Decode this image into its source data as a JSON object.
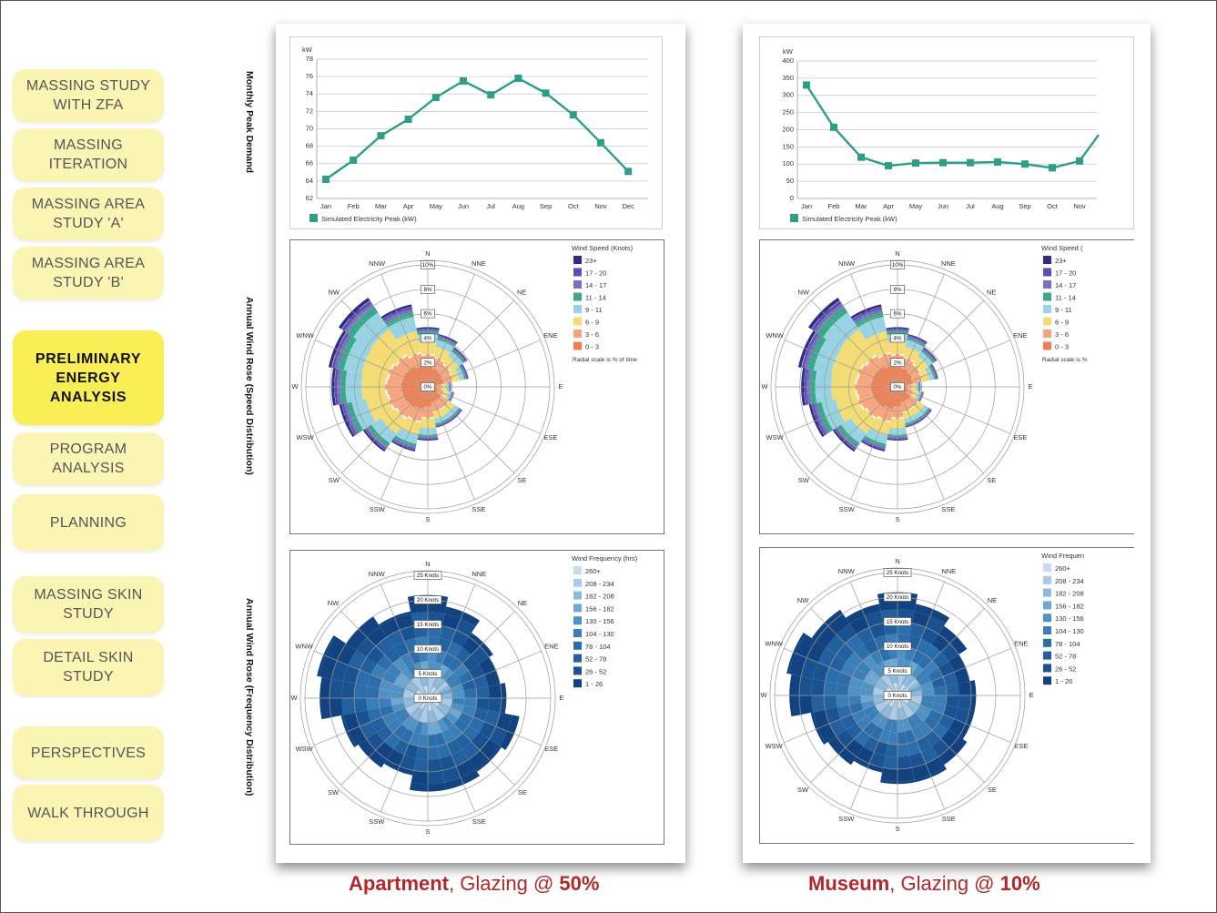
{
  "nav": [
    {
      "label": "MASSING STUDY\nWITH ZFA",
      "active": false
    },
    {
      "label": "MASSING\nITERATION",
      "active": false
    },
    {
      "label": "MASSING AREA\nSTUDY 'A'",
      "active": false
    },
    {
      "label": "MASSING AREA\nSTUDY 'B'",
      "active": false
    },
    {
      "label": "PRELIMINARY\nENERGY\nANALYSIS",
      "active": true
    },
    {
      "label": "PROGRAM\nANALYSIS",
      "active": false
    },
    {
      "label": "PLANNING",
      "active": false
    },
    {
      "label": "MASSING SKIN\nSTUDY",
      "active": false
    },
    {
      "label": "DETAIL SKIN\nSTUDY",
      "active": false
    },
    {
      "label": "PERSPECTIVES",
      "active": false
    },
    {
      "label": "WALK THROUGH",
      "active": false
    }
  ],
  "row_labels": {
    "demand": "Monthly Peak Demand",
    "speed": "Annual Wind Rose (Speed Distribution)",
    "frequency": "Annual Wind Rose (Frequency Distribution)"
  },
  "captions": {
    "apartment": {
      "name": "Apartment",
      "middle": ", Glazing @ ",
      "value": "50%"
    },
    "museum": {
      "name": "Museum",
      "middle": ", Glazing @ ",
      "value": "10%"
    }
  },
  "wind_directions": [
    "N",
    "NNE",
    "NE",
    "ENE",
    "E",
    "ESE",
    "SE",
    "SSE",
    "S",
    "SSW",
    "SW",
    "WSW",
    "W",
    "WNW",
    "NW",
    "NNW"
  ],
  "speed_legend": {
    "title": "Wind Speed (Knots)",
    "title_truncated": "Wind Speed (",
    "items": [
      "23+",
      "17 - 20",
      "14 - 17",
      "11 - 14",
      "9 - 11",
      "6 - 9",
      "3 - 6",
      "0 - 3"
    ],
    "colors": [
      "#2e2c85",
      "#5a4fae",
      "#7b6fc4",
      "#3aa889",
      "#98d3e3",
      "#f4dc74",
      "#f7a57c",
      "#f07e4f"
    ],
    "note": "Radial scale is  % of time",
    "note_truncated": "Radial scale is  %",
    "ring_labels": [
      "0%",
      "2%",
      "4%",
      "6%",
      "8%",
      "10%"
    ]
  },
  "freq_legend": {
    "title": "Wind Frequency (hrs)",
    "title_truncated": "Wind Frequen",
    "items": [
      "260+",
      "208 - 234",
      "182 - 208",
      "156 - 182",
      "130 - 156",
      "104 - 130",
      "78 - 104",
      "52 - 78",
      "26 - 52",
      "1 - 26"
    ],
    "colors": [
      "#c6dbef",
      "#a9cbe6",
      "#8cbadd",
      "#6da7d2",
      "#4f92c6",
      "#3a7fba",
      "#2c6dac",
      "#22609f",
      "#1a5291",
      "#124380"
    ],
    "ring_labels": [
      "0 Knots",
      "5 Knots",
      "10 Knots",
      "15 Knots",
      "20 Knots",
      "25 Knots"
    ]
  },
  "chart_data": [
    {
      "type": "line",
      "id": "apartment-demand",
      "title": "",
      "ylabel": "kW",
      "categories": [
        "Jan",
        "Feb",
        "Mar",
        "Apr",
        "May",
        "Jun",
        "Jul",
        "Aug",
        "Sep",
        "Oct",
        "Nov",
        "Dec"
      ],
      "series": [
        {
          "name": "Simulated Electricity Peak (kW)",
          "values": [
            64.2,
            66.4,
            69.2,
            71.1,
            73.6,
            75.5,
            73.9,
            75.8,
            74.1,
            71.6,
            68.4,
            65.1
          ]
        }
      ],
      "yticks": [
        62,
        64,
        66,
        68,
        70,
        72,
        74,
        76,
        78
      ],
      "ylim": [
        62,
        78
      ],
      "color": "#2e9e86"
    },
    {
      "type": "line",
      "id": "museum-demand",
      "title": "",
      "ylabel": "kW",
      "categories": [
        "Jan",
        "Feb",
        "Mar",
        "Apr",
        "May",
        "Jun",
        "Jul",
        "Aug",
        "Sep",
        "Oct",
        "Nov"
      ],
      "series": [
        {
          "name": "Simulated Electricity Peak (kW)",
          "values": [
            330,
            207,
            120,
            95,
            103,
            104,
            104,
            106,
            100,
            89,
            109
          ]
        }
      ],
      "tail_value": 185,
      "yticks": [
        0,
        50,
        100,
        150,
        200,
        250,
        300,
        350,
        400
      ],
      "ylim": [
        0,
        400
      ],
      "color": "#2e9e86"
    },
    {
      "type": "wind_rose_speed",
      "id": "apartment-speed",
      "directions": [
        "N",
        "NNE",
        "NE",
        "ENE",
        "E",
        "ESE",
        "SE",
        "SSE",
        "S",
        "SSW",
        "SW",
        "WSW",
        "W",
        "WNW",
        "NW",
        "NNW"
      ],
      "range_percent": [
        0,
        10
      ],
      "totals_percent": [
        4.9,
        4.4,
        3.9,
        3.4,
        1.9,
        2.2,
        3.4,
        3.4,
        4.4,
        5.4,
        6.4,
        7.4,
        7.9,
        8.3,
        8.8,
        6.9
      ],
      "inner_percent": [
        2.7,
        2.5,
        2.3,
        2.1,
        1.2,
        1.4,
        2.1,
        2.1,
        2.6,
        3.0,
        3.2,
        3.4,
        3.5,
        3.4,
        3.2,
        2.9
      ]
    },
    {
      "type": "wind_rose_speed",
      "id": "museum-speed",
      "directions": [
        "N",
        "NNE",
        "NE",
        "ENE",
        "E",
        "ESE",
        "SE",
        "SSE",
        "S",
        "SSW",
        "SW",
        "WSW",
        "W",
        "WNW",
        "NW",
        "NNW"
      ],
      "range_percent": [
        0,
        10
      ],
      "totals_percent": [
        4.9,
        4.4,
        3.9,
        3.4,
        1.9,
        2.2,
        3.4,
        3.4,
        4.4,
        5.4,
        6.4,
        7.4,
        7.9,
        8.3,
        8.8,
        6.9
      ],
      "inner_percent": [
        2.7,
        2.5,
        2.3,
        2.1,
        1.2,
        1.4,
        2.1,
        2.1,
        2.6,
        3.0,
        3.2,
        3.4,
        3.5,
        3.4,
        3.2,
        2.9
      ]
    },
    {
      "type": "wind_rose_frequency",
      "id": "apartment-frequency",
      "directions": [
        "N",
        "NNE",
        "NE",
        "ENE",
        "E",
        "ESE",
        "SE",
        "SSE",
        "S",
        "SSW",
        "SW",
        "WSW",
        "W",
        "WNW",
        "NW",
        "NNW"
      ],
      "range_knots": [
        0,
        25
      ],
      "extent_knots": [
        21,
        19,
        16,
        15,
        16,
        19,
        18,
        19,
        19,
        16,
        17,
        18,
        22,
        23,
        20,
        18
      ]
    },
    {
      "type": "wind_rose_frequency",
      "id": "museum-frequency",
      "directions": [
        "N",
        "NNE",
        "NE",
        "ENE",
        "E",
        "ESE",
        "SE",
        "SSE",
        "S",
        "SSW",
        "SW",
        "WSW",
        "W",
        "WNW",
        "NW",
        "NNW"
      ],
      "range_knots": [
        0,
        25
      ],
      "extent_knots": [
        21,
        19,
        17,
        15,
        16,
        16,
        17,
        18,
        18,
        16,
        17,
        18,
        22,
        23,
        21,
        19
      ]
    }
  ]
}
